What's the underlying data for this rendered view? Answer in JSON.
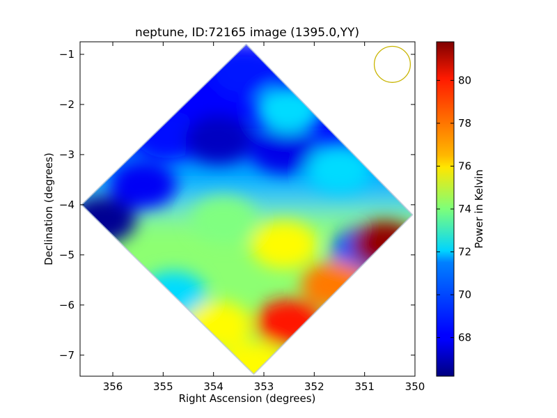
{
  "chart_data": {
    "type": "heatmap",
    "title": "neptune, ID:72165 image (1395.0,YY)",
    "xlabel": "Right Ascension (degrees)",
    "ylabel": "Declination (degrees)",
    "xlim": [
      356.65,
      350.0
    ],
    "ylim": [
      -7.42,
      -0.75
    ],
    "x_inverted": true,
    "xticks": [
      356,
      355,
      354,
      353,
      352,
      351,
      350
    ],
    "yticks": [
      -1,
      -2,
      -3,
      -4,
      -5,
      -6,
      -7
    ],
    "colormap": "jet",
    "colorbar": {
      "label": "Power in Kelvin",
      "range": [
        66.2,
        81.8
      ],
      "ticks": [
        68,
        70,
        72,
        74,
        76,
        78,
        80
      ]
    },
    "footprint": {
      "shape": "diamond",
      "top": [
        353.35,
        -0.8
      ],
      "right": [
        350.05,
        -4.2
      ],
      "bottom": [
        353.2,
        -7.38
      ],
      "left": [
        356.62,
        -4.0
      ]
    },
    "beam_marker": {
      "shape": "circle",
      "center": [
        350.45,
        -1.2
      ],
      "radius_deg": 0.36,
      "color": "#c8b400"
    },
    "features": [
      {
        "ra": 356.2,
        "dec": -4.3,
        "value": 66.5
      },
      {
        "ra": 355.4,
        "dec": -3.6,
        "value": 68.0
      },
      {
        "ra": 354.9,
        "dec": -2.6,
        "value": 68.3
      },
      {
        "ra": 353.9,
        "dec": -2.7,
        "value": 67.2
      },
      {
        "ra": 352.6,
        "dec": -2.9,
        "value": 67.8
      },
      {
        "ra": 353.4,
        "dec": -1.4,
        "value": 68.5
      },
      {
        "ra": 352.5,
        "dec": -2.1,
        "value": 71.5
      },
      {
        "ra": 351.5,
        "dec": -3.3,
        "value": 71.5
      },
      {
        "ra": 354.8,
        "dec": -5.8,
        "value": 71.5
      },
      {
        "ra": 353.8,
        "dec": -4.3,
        "value": 74.0
      },
      {
        "ra": 352.6,
        "dec": -4.8,
        "value": 76.0
      },
      {
        "ra": 351.0,
        "dec": -4.9,
        "value": 69.5
      },
      {
        "ra": 350.6,
        "dec": -4.8,
        "value": 81.5
      },
      {
        "ra": 351.6,
        "dec": -5.6,
        "value": 78.0
      },
      {
        "ra": 352.5,
        "dec": -6.35,
        "value": 79.5
      },
      {
        "ra": 353.9,
        "dec": -6.4,
        "value": 76.0
      },
      {
        "ra": 353.2,
        "dec": -7.2,
        "value": 76.0
      }
    ]
  }
}
